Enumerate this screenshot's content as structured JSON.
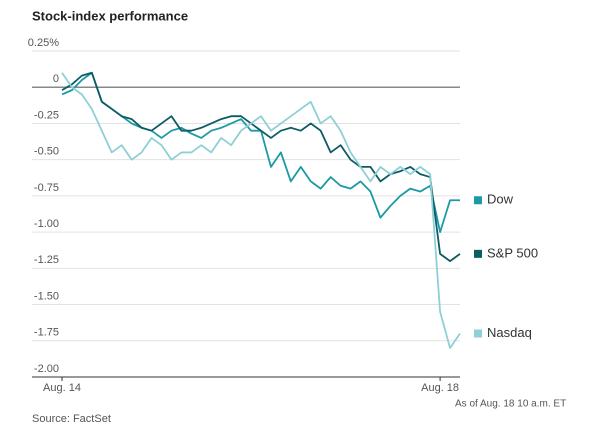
{
  "chart_data": {
    "type": "line",
    "title": "Stock-index performance",
    "source": "Source: FactSet",
    "note": "As of Aug. 18 10 a.m. ET",
    "x": [
      0,
      1,
      2,
      3,
      4,
      5,
      6,
      7,
      8,
      9,
      10,
      11,
      12,
      13,
      14,
      15,
      16,
      17,
      18,
      19,
      20,
      21,
      22,
      23,
      24,
      25,
      26,
      27,
      28,
      29,
      30,
      31,
      32,
      33,
      34,
      35,
      36,
      37,
      38,
      39,
      40
    ],
    "xlim": [
      0,
      40
    ],
    "xticks": [
      {
        "value": 0,
        "label": "Aug. 14"
      },
      {
        "value": 38,
        "label": "Aug. 18"
      }
    ],
    "ylim": [
      -2,
      0.25
    ],
    "yticks": [
      {
        "value": 0.25,
        "label": "0.25%"
      },
      0,
      -0.25,
      {
        "value": -0.5,
        "label": "-0.50"
      },
      -0.75,
      {
        "value": -1,
        "label": "-1.00"
      },
      -1.25,
      {
        "value": -1.5,
        "label": "-1.50"
      },
      -1.75,
      {
        "value": -2,
        "label": "-2.00"
      }
    ],
    "grid": true,
    "series": [
      {
        "name": "Dow",
        "color": "#1b9aa6",
        "values": [
          -0.05,
          -0.02,
          0.05,
          0.1,
          -0.1,
          -0.15,
          -0.2,
          -0.25,
          -0.28,
          -0.3,
          -0.35,
          -0.3,
          -0.28,
          -0.32,
          -0.35,
          -0.3,
          -0.28,
          -0.25,
          -0.22,
          -0.3,
          -0.3,
          -0.55,
          -0.45,
          -0.65,
          -0.55,
          -0.65,
          -0.7,
          -0.62,
          -0.68,
          -0.7,
          -0.65,
          -0.72,
          -0.9,
          -0.82,
          -0.75,
          -0.7,
          -0.72,
          -0.68,
          -1.0,
          -0.78,
          -0.78
        ]
      },
      {
        "name": "S&P 500",
        "color": "#0d5c63",
        "values": [
          -0.02,
          0.02,
          0.08,
          0.1,
          -0.1,
          -0.15,
          -0.2,
          -0.22,
          -0.28,
          -0.3,
          -0.25,
          -0.2,
          -0.3,
          -0.3,
          -0.28,
          -0.25,
          -0.22,
          -0.2,
          -0.2,
          -0.25,
          -0.3,
          -0.35,
          -0.3,
          -0.28,
          -0.3,
          -0.25,
          -0.3,
          -0.45,
          -0.4,
          -0.5,
          -0.55,
          -0.55,
          -0.65,
          -0.6,
          -0.58,
          -0.55,
          -0.6,
          -0.62,
          -1.15,
          -1.2,
          -1.15
        ]
      },
      {
        "name": "Nasdaq",
        "color": "#8fcfd6",
        "values": [
          0.1,
          0.0,
          -0.05,
          -0.15,
          -0.3,
          -0.45,
          -0.4,
          -0.5,
          -0.45,
          -0.35,
          -0.4,
          -0.5,
          -0.45,
          -0.45,
          -0.4,
          -0.45,
          -0.35,
          -0.4,
          -0.3,
          -0.25,
          -0.2,
          -0.3,
          -0.25,
          -0.2,
          -0.15,
          -0.1,
          -0.25,
          -0.2,
          -0.3,
          -0.45,
          -0.55,
          -0.65,
          -0.55,
          -0.6,
          -0.55,
          -0.6,
          -0.55,
          -0.6,
          -1.55,
          -1.8,
          -1.7
        ]
      }
    ]
  }
}
